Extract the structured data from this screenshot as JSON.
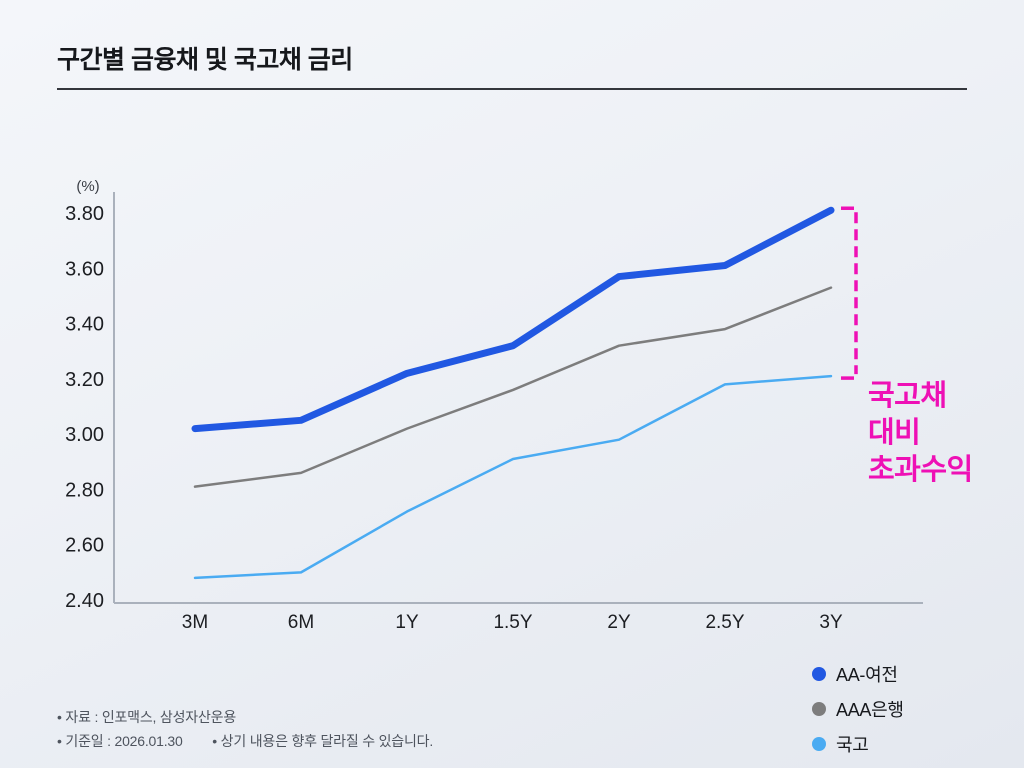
{
  "page": {
    "title": "구간별 금융채 및 국고채 금리"
  },
  "annotation": {
    "text": "국고채\n대비\n초과수익",
    "color": "#ee10b5"
  },
  "footnotes": {
    "source": "• 자료 : 인포맥스, 삼성자산운용",
    "base_date": "• 기준일 : 2026.01.30",
    "disclaimer": "• 상기 내용은 향후 달라질 수 있습니다."
  },
  "chart_data": {
    "type": "line",
    "title": "구간별 금융채 및 국고채 금리",
    "unit_label": "(%)",
    "xlabel": "",
    "ylabel": "(%)",
    "categories": [
      "3M",
      "6M",
      "1Y",
      "1.5Y",
      "2Y",
      "2.5Y",
      "3Y"
    ],
    "series": [
      {
        "name": "AA-여전",
        "color": "#2158e2",
        "line_width": 7,
        "values": [
          3.02,
          3.05,
          3.22,
          3.32,
          3.57,
          3.61,
          3.81
        ]
      },
      {
        "name": "AAA은행",
        "color": "#7d7d7d",
        "line_width": 2.5,
        "values": [
          2.81,
          2.86,
          3.02,
          3.16,
          3.32,
          3.38,
          3.53
        ]
      },
      {
        "name": "국고",
        "color": "#4aabf2",
        "line_width": 2.5,
        "values": [
          2.48,
          2.5,
          2.72,
          2.91,
          2.98,
          3.18,
          3.21
        ]
      }
    ],
    "ylim": [
      2.4,
      3.8
    ],
    "ytick_step": 0.2,
    "yticks": [
      "3.80",
      "3.60",
      "3.40",
      "3.20",
      "3.00",
      "2.80",
      "2.60",
      "2.40"
    ],
    "grid": false,
    "legend_position": "inside-bottom-right",
    "axis_color": "#aab1bc",
    "tick_label_color": "#1c1e22",
    "bracket_annotation": {
      "label": "국고채 대비 초과수익",
      "from_series": "AA-여전",
      "to_series": "국고",
      "at_category": "3Y",
      "color": "#ee10b5"
    }
  }
}
